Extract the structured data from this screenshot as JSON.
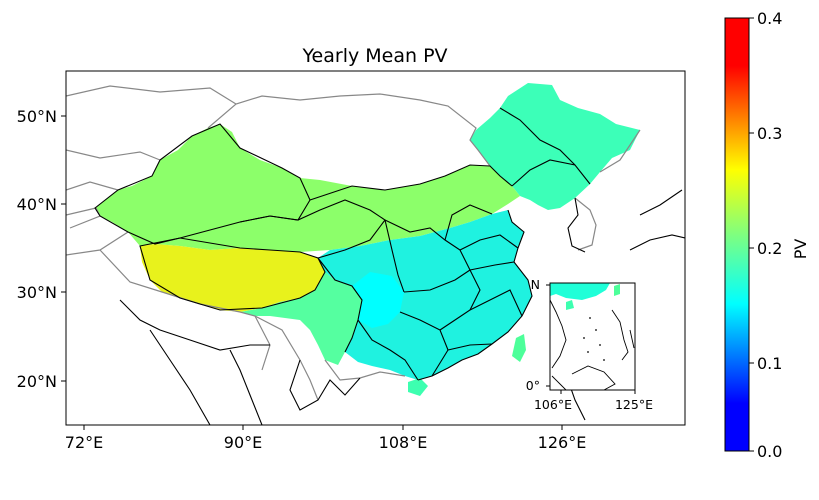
{
  "title": "Yearly Mean PV",
  "main_map": {
    "lon_ticks": [
      "72°E",
      "90°E",
      "108°E",
      "126°E"
    ],
    "lat_ticks": [
      "50°N",
      "40°N",
      "30°N",
      "20°N"
    ]
  },
  "inset_map": {
    "lon_ticks": [
      "106°E",
      "125°E"
    ],
    "lat_ticks": [
      "N",
      "0°"
    ]
  },
  "colorbar": {
    "label": "PV",
    "ticks": [
      "0.4",
      "0.3",
      "0.2",
      "0.1",
      "0.0"
    ],
    "colormap": "jet",
    "range": [
      0.0,
      0.4
    ]
  },
  "field_summary": {
    "tibetan_plateau": 0.27,
    "northwest_china": 0.22,
    "northeast_china": 0.19,
    "southeast_china": 0.13,
    "sichuan_basin": 0.11
  }
}
